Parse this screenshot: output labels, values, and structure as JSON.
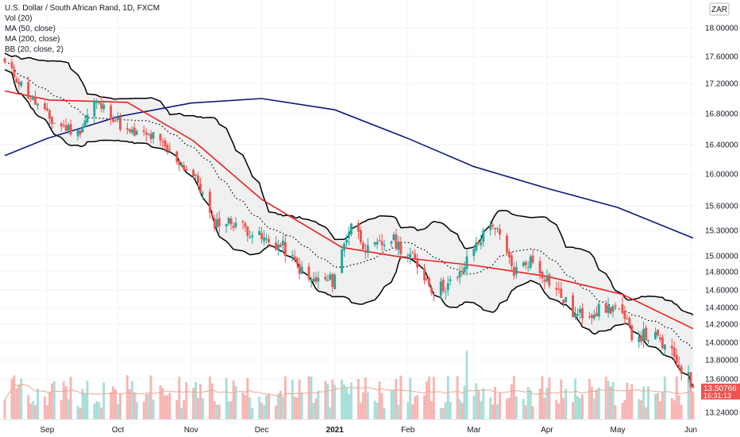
{
  "header": {
    "title": "U.S. Dollar / South African Rand, 1D, FXCM",
    "indicators": [
      "Vol (20)",
      "MA (50, close)",
      "MA (200, close)",
      "BB (20, close, 2)"
    ],
    "currency_badge": "ZAR"
  },
  "price_tag": {
    "value": "13.50766",
    "countdown": "16:31:13"
  },
  "colors": {
    "up": "#26a69a",
    "down": "#ef5350",
    "vol_up": "#a8ded8",
    "vol_down": "#f7b5b3",
    "ma50": "#e52222",
    "ma200": "#0b1a7a",
    "bb_band": "#000000",
    "bb_fill": "#ececec",
    "bb_basis": "#000000",
    "vol_ma": "#f3a58f",
    "grid": "#f0f3fa",
    "price_tag_bg": "#ef5350"
  },
  "chart_data": {
    "type": "candlestick",
    "symbol": "USDZAR",
    "y_axis_ticks": [
      "18.00000",
      "17.60000",
      "17.20000",
      "16.80000",
      "16.40000",
      "16.00000",
      "15.60000",
      "15.30000",
      "15.00000",
      "14.80000",
      "14.60000",
      "14.40000",
      "14.20000",
      "14.00000",
      "13.80000",
      "13.60000",
      "13.24000"
    ],
    "x_axis_labels": [
      "Sep",
      "Oct",
      "Nov",
      "Dec",
      "2021",
      "Feb",
      "Mar",
      "Apr",
      "May",
      "Jun"
    ],
    "ylim": [
      13.2,
      18.25
    ],
    "close_anchors": [
      {
        "date": "2020-08-14",
        "close": 17.5
      },
      {
        "date": "2020-08-24",
        "close": 17.05
      },
      {
        "date": "2020-09-03",
        "close": 16.7
      },
      {
        "date": "2020-09-14",
        "close": 16.55
      },
      {
        "date": "2020-09-21",
        "close": 16.95
      },
      {
        "date": "2020-09-28",
        "close": 16.8
      },
      {
        "date": "2020-10-05",
        "close": 16.55
      },
      {
        "date": "2020-10-16",
        "close": 16.5
      },
      {
        "date": "2020-10-26",
        "close": 16.2
      },
      {
        "date": "2020-11-04",
        "close": 15.9
      },
      {
        "date": "2020-11-10",
        "close": 15.4
      },
      {
        "date": "2020-11-20",
        "close": 15.4
      },
      {
        "date": "2020-12-01",
        "close": 15.2
      },
      {
        "date": "2020-12-10",
        "close": 15.1
      },
      {
        "date": "2020-12-21",
        "close": 14.7
      },
      {
        "date": "2020-12-31",
        "close": 14.7
      },
      {
        "date": "2021-01-08",
        "close": 15.4
      },
      {
        "date": "2021-01-15",
        "close": 15.05
      },
      {
        "date": "2021-01-25",
        "close": 15.2
      },
      {
        "date": "2021-02-02",
        "close": 15.0
      },
      {
        "date": "2021-02-12",
        "close": 14.6
      },
      {
        "date": "2021-02-22",
        "close": 14.7
      },
      {
        "date": "2021-03-01",
        "close": 15.1
      },
      {
        "date": "2021-03-09",
        "close": 15.4
      },
      {
        "date": "2021-03-18",
        "close": 14.8
      },
      {
        "date": "2021-03-25",
        "close": 14.95
      },
      {
        "date": "2021-04-05",
        "close": 14.6
      },
      {
        "date": "2021-04-13",
        "close": 14.3
      },
      {
        "date": "2021-04-20",
        "close": 14.35
      },
      {
        "date": "2021-04-30",
        "close": 14.4
      },
      {
        "date": "2021-05-07",
        "close": 14.1
      },
      {
        "date": "2021-05-17",
        "close": 14.05
      },
      {
        "date": "2021-05-26",
        "close": 13.8
      },
      {
        "date": "2021-06-02",
        "close": 13.52
      }
    ],
    "ma50_anchors": [
      {
        "date": "2020-08-14",
        "value": 17.1
      },
      {
        "date": "2020-09-02",
        "value": 16.98
      },
      {
        "date": "2020-10-05",
        "value": 16.95
      },
      {
        "date": "2020-11-02",
        "value": 16.45
      },
      {
        "date": "2020-12-01",
        "value": 15.68
      },
      {
        "date": "2021-01-04",
        "value": 15.1
      },
      {
        "date": "2021-02-01",
        "value": 14.97
      },
      {
        "date": "2021-03-01",
        "value": 14.88
      },
      {
        "date": "2021-04-01",
        "value": 14.75
      },
      {
        "date": "2021-05-03",
        "value": 14.55
      },
      {
        "date": "2021-06-02",
        "value": 14.15
      }
    ],
    "ma200_anchors": [
      {
        "date": "2020-08-14",
        "value": 16.25
      },
      {
        "date": "2020-09-01",
        "value": 16.48
      },
      {
        "date": "2020-10-01",
        "value": 16.76
      },
      {
        "date": "2020-11-01",
        "value": 16.94
      },
      {
        "date": "2020-12-01",
        "value": 17.0
      },
      {
        "date": "2021-01-01",
        "value": 16.85
      },
      {
        "date": "2021-02-01",
        "value": 16.48
      },
      {
        "date": "2021-03-01",
        "value": 16.1
      },
      {
        "date": "2021-04-01",
        "value": 15.82
      },
      {
        "date": "2021-05-01",
        "value": 15.58
      },
      {
        "date": "2021-06-02",
        "value": 15.21
      }
    ],
    "last_price": 13.50766
  }
}
